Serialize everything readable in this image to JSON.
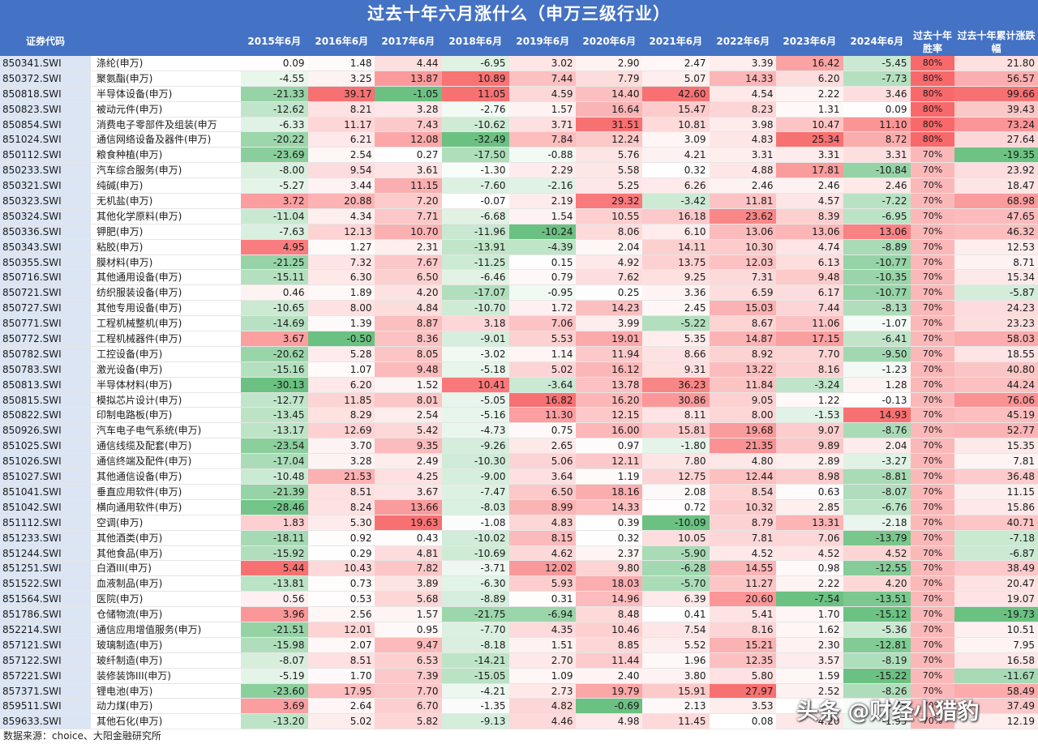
{
  "title": "过去十年六月涨什么（申万三级行业）",
  "headers": {
    "code": "证券代码",
    "years": [
      "2015年6月",
      "2016年6月",
      "2017年6月",
      "2018年6月",
      "2019年6月",
      "2020年6月",
      "2021年6月",
      "2022年6月",
      "2023年6月",
      "2024年6月"
    ],
    "winrate": "过去十年胜率",
    "cumulative": "过去十年累计涨跌幅"
  },
  "rows": [
    {
      "code": "850341.SWI",
      "name": "涤纶(申万)",
      "v": [
        "0.09",
        "1.48",
        "4.44",
        "-6.95",
        "3.02",
        "2.90",
        "2.47",
        "3.39",
        "16.42",
        "-5.45"
      ],
      "win": "80%",
      "cum": "21.80"
    },
    {
      "code": "850372.SWI",
      "name": "聚氨酯(申万)",
      "v": [
        "-4.55",
        "3.25",
        "13.87",
        "10.89",
        "7.44",
        "7.79",
        "5.07",
        "14.33",
        "6.20",
        "-7.73"
      ],
      "win": "80%",
      "cum": "56.57"
    },
    {
      "code": "850818.SWI",
      "name": "半导体设备(申万)",
      "v": [
        "-21.33",
        "39.17",
        "-1.05",
        "11.05",
        "4.59",
        "14.40",
        "42.60",
        "4.54",
        "2.22",
        "3.46"
      ],
      "win": "80%",
      "cum": "99.66"
    },
    {
      "code": "850823.SWI",
      "name": "被动元件(申万)",
      "v": [
        "-12.62",
        "8.21",
        "3.28",
        "-2.76",
        "1.57",
        "16.64",
        "15.47",
        "8.23",
        "1.31",
        "0.09"
      ],
      "win": "80%",
      "cum": "39.43"
    },
    {
      "code": "850854.SWI",
      "name": "消费电子零部件及组装(申万",
      "v": [
        "-6.33",
        "11.17",
        "7.43",
        "-10.62",
        "3.71",
        "31.51",
        "10.81",
        "3.98",
        "10.47",
        "11.10"
      ],
      "win": "80%",
      "cum": "73.24"
    },
    {
      "code": "851024.SWI",
      "name": "通信网络设备及器件(申万)",
      "v": [
        "-20.22",
        "6.21",
        "12.08",
        "-32.49",
        "7.84",
        "12.24",
        "3.09",
        "4.83",
        "25.34",
        "8.72"
      ],
      "win": "80%",
      "cum": "27.64"
    },
    {
      "code": "850112.SWI",
      "name": "粮食种植(申万)",
      "v": [
        "-23.69",
        "2.54",
        "0.27",
        "-17.50",
        "-0.88",
        "5.76",
        "4.21",
        "3.31",
        "3.31",
        "3.31"
      ],
      "win": "70%",
      "cum": "-19.35"
    },
    {
      "code": "850233.SWI",
      "name": "汽车综合服务(申万)",
      "v": [
        "-8.00",
        "9.54",
        "3.61",
        "-1.30",
        "2.29",
        "5.58",
        "0.32",
        "4.88",
        "17.81",
        "-10.84"
      ],
      "win": "70%",
      "cum": "23.92"
    },
    {
      "code": "850321.SWI",
      "name": "纯碱(申万)",
      "v": [
        "-5.27",
        "3.44",
        "11.15",
        "-7.60",
        "-2.16",
        "5.25",
        "6.26",
        "2.46",
        "2.46",
        "2.46"
      ],
      "win": "70%",
      "cum": "18.47"
    },
    {
      "code": "850323.SWI",
      "name": "无机盐(申万)",
      "v": [
        "3.72",
        "20.88",
        "7.20",
        "-0.07",
        "2.19",
        "29.32",
        "-3.42",
        "11.81",
        "4.57",
        "-7.22"
      ],
      "win": "70%",
      "cum": "68.98"
    },
    {
      "code": "850324.SWI",
      "name": "其他化学原料(申万)",
      "v": [
        "-11.04",
        "4.34",
        "7.71",
        "-6.68",
        "1.54",
        "10.55",
        "16.18",
        "23.62",
        "8.39",
        "-6.95"
      ],
      "win": "70%",
      "cum": "47.65"
    },
    {
      "code": "850336.SWI",
      "name": "钾肥(申万)",
      "v": [
        "-7.63",
        "12.13",
        "10.70",
        "-11.96",
        "-10.24",
        "8.06",
        "6.10",
        "13.06",
        "13.06",
        "13.06"
      ],
      "win": "70%",
      "cum": "46.32"
    },
    {
      "code": "850343.SWI",
      "name": "粘胶(申万)",
      "v": [
        "4.95",
        "1.27",
        "2.31",
        "-13.91",
        "-4.39",
        "2.04",
        "14.11",
        "10.30",
        "4.74",
        "-8.89"
      ],
      "win": "70%",
      "cum": "12.53"
    },
    {
      "code": "850355.SWI",
      "name": "膜材料(申万)",
      "v": [
        "-21.25",
        "7.32",
        "7.67",
        "-11.25",
        "0.15",
        "4.92",
        "13.75",
        "12.03",
        "6.13",
        "-10.77"
      ],
      "win": "70%",
      "cum": "8.71"
    },
    {
      "code": "850716.SWI",
      "name": "其他通用设备(申万)",
      "v": [
        "-15.11",
        "6.30",
        "6.50",
        "-6.46",
        "0.79",
        "7.62",
        "9.25",
        "7.31",
        "9.48",
        "-10.35"
      ],
      "win": "70%",
      "cum": "15.34"
    },
    {
      "code": "850721.SWI",
      "name": "纺织服装设备(申万)",
      "v": [
        "0.46",
        "1.89",
        "4.20",
        "-17.07",
        "-0.95",
        "0.25",
        "3.36",
        "6.59",
        "6.17",
        "-10.77"
      ],
      "win": "70%",
      "cum": "-5.87"
    },
    {
      "code": "850727.SWI",
      "name": "其他专用设备(申万)",
      "v": [
        "-10.65",
        "8.00",
        "4.84",
        "-10.70",
        "1.72",
        "14.23",
        "2.45",
        "15.03",
        "7.44",
        "-8.13"
      ],
      "win": "70%",
      "cum": "24.23"
    },
    {
      "code": "850771.SWI",
      "name": "工程机械整机(申万)",
      "v": [
        "-14.69",
        "1.39",
        "8.87",
        "3.18",
        "7.06",
        "3.99",
        "-5.22",
        "8.67",
        "11.06",
        "-1.07"
      ],
      "win": "70%",
      "cum": "23.23"
    },
    {
      "code": "850772.SWI",
      "name": "工程机械器件(申万)",
      "v": [
        "3.67",
        "-0.50",
        "8.36",
        "-9.01",
        "5.53",
        "19.01",
        "5.35",
        "14.87",
        "17.15",
        "-6.41"
      ],
      "win": "70%",
      "cum": "58.03"
    },
    {
      "code": "850782.SWI",
      "name": "工控设备(申万)",
      "v": [
        "-20.62",
        "5.28",
        "8.05",
        "-3.02",
        "1.14",
        "11.94",
        "8.66",
        "8.92",
        "7.70",
        "-9.50"
      ],
      "win": "70%",
      "cum": "18.55"
    },
    {
      "code": "850783.SWI",
      "name": "激光设备(申万)",
      "v": [
        "-15.16",
        "1.07",
        "9.48",
        "-5.18",
        "5.02",
        "16.12",
        "9.31",
        "13.22",
        "8.16",
        "-1.23"
      ],
      "win": "70%",
      "cum": "40.80"
    },
    {
      "code": "850813.SWI",
      "name": "半导体材料(申万)",
      "v": [
        "-30.13",
        "6.20",
        "1.52",
        "10.41",
        "-3.64",
        "13.78",
        "36.23",
        "11.84",
        "-3.24",
        "1.28"
      ],
      "win": "70%",
      "cum": "44.24"
    },
    {
      "code": "850815.SWI",
      "name": "模拟芯片设计(申万)",
      "v": [
        "-12.77",
        "11.85",
        "8.01",
        "-5.05",
        "16.82",
        "16.20",
        "30.86",
        "9.05",
        "1.22",
        "-0.13"
      ],
      "win": "70%",
      "cum": "76.06"
    },
    {
      "code": "850822.SWI",
      "name": "印制电路板(申万)",
      "v": [
        "-13.45",
        "8.29",
        "2.54",
        "-5.16",
        "11.30",
        "12.15",
        "8.11",
        "8.00",
        "-1.53",
        "14.93"
      ],
      "win": "70%",
      "cum": "45.19"
    },
    {
      "code": "850926.SWI",
      "name": "汽车电子电气系统(申万)",
      "v": [
        "-13.17",
        "12.69",
        "5.42",
        "-4.73",
        "0.75",
        "16.00",
        "15.81",
        "19.68",
        "9.07",
        "-8.76"
      ],
      "win": "70%",
      "cum": "52.77"
    },
    {
      "code": "851025.SWI",
      "name": "通信线缆及配套(申万)",
      "v": [
        "-23.54",
        "3.70",
        "9.35",
        "-9.26",
        "2.65",
        "0.97",
        "-1.80",
        "21.35",
        "9.89",
        "2.04"
      ],
      "win": "70%",
      "cum": "15.35"
    },
    {
      "code": "851026.SWI",
      "name": "通信终端及配件(申万)",
      "v": [
        "-17.04",
        "3.28",
        "2.49",
        "-10.30",
        "5.06",
        "12.11",
        "7.80",
        "4.80",
        "2.89",
        "-3.27"
      ],
      "win": "70%",
      "cum": "7.81"
    },
    {
      "code": "851027.SWI",
      "name": "其他通信设备(申万)",
      "v": [
        "-10.48",
        "21.53",
        "4.25",
        "-9.00",
        "3.64",
        "1.19",
        "12.75",
        "12.44",
        "8.98",
        "-8.81"
      ],
      "win": "70%",
      "cum": "36.48"
    },
    {
      "code": "851041.SWI",
      "name": "垂直应用软件(申万)",
      "v": [
        "-21.39",
        "8.51",
        "3.67",
        "-7.47",
        "6.50",
        "18.16",
        "2.08",
        "8.54",
        "0.63",
        "-8.07"
      ],
      "win": "70%",
      "cum": "11.15"
    },
    {
      "code": "851042.SWI",
      "name": "横向通用软件(申万)",
      "v": [
        "-28.46",
        "8.24",
        "13.66",
        "-8.03",
        "8.99",
        "14.33",
        "0.72",
        "10.32",
        "2.85",
        "-6.76"
      ],
      "win": "70%",
      "cum": "15.86"
    },
    {
      "code": "851112.SWI",
      "name": "空调(申万)",
      "v": [
        "1.83",
        "5.30",
        "19.63",
        "-1.08",
        "4.83",
        "0.39",
        "-10.09",
        "8.79",
        "13.31",
        "-2.18"
      ],
      "win": "70%",
      "cum": "40.71"
    },
    {
      "code": "851233.SWI",
      "name": "其他酒类(申万)",
      "v": [
        "-18.11",
        "0.92",
        "0.43",
        "-10.02",
        "8.15",
        "0.32",
        "10.05",
        "7.81",
        "7.06",
        "-13.79"
      ],
      "win": "70%",
      "cum": "-7.18"
    },
    {
      "code": "851244.SWI",
      "name": "其他食品(申万)",
      "v": [
        "-15.92",
        "0.29",
        "4.81",
        "-10.69",
        "4.62",
        "2.37",
        "-5.90",
        "4.52",
        "4.52",
        "4.52"
      ],
      "win": "70%",
      "cum": "-6.87"
    },
    {
      "code": "851251.SWI",
      "name": "白酒III(申万)",
      "v": [
        "5.44",
        "10.43",
        "7.82",
        "-3.71",
        "12.02",
        "9.80",
        "-6.28",
        "14.55",
        "0.98",
        "-12.55"
      ],
      "win": "70%",
      "cum": "38.49"
    },
    {
      "code": "851522.SWI",
      "name": "血液制品(申万)",
      "v": [
        "-13.81",
        "0.73",
        "3.89",
        "-6.30",
        "5.93",
        "18.03",
        "-5.70",
        "11.27",
        "2.22",
        "4.20"
      ],
      "win": "70%",
      "cum": "20.47"
    },
    {
      "code": "851564.SWI",
      "name": "医院(申万)",
      "v": [
        "0.56",
        "0.53",
        "5.68",
        "-8.89",
        "0.31",
        "14.96",
        "6.39",
        "20.60",
        "-7.54",
        "-13.51"
      ],
      "win": "70%",
      "cum": "19.07"
    },
    {
      "code": "851786.SWI",
      "name": "仓储物流(申万)",
      "v": [
        "3.96",
        "2.56",
        "1.57",
        "-21.75",
        "-6.94",
        "8.48",
        "0.41",
        "5.41",
        "1.70",
        "-15.12"
      ],
      "win": "70%",
      "cum": "-19.73"
    },
    {
      "code": "852214.SWI",
      "name": "通信应用增值服务(申万)",
      "v": [
        "-21.51",
        "12.01",
        "0.95",
        "-7.70",
        "4.35",
        "10.46",
        "7.54",
        "8.16",
        "1.62",
        "-5.36"
      ],
      "win": "70%",
      "cum": "10.51"
    },
    {
      "code": "857121.SWI",
      "name": "玻璃制造(申万)",
      "v": [
        "-15.98",
        "2.07",
        "9.47",
        "-8.18",
        "1.51",
        "8.85",
        "5.52",
        "15.21",
        "2.30",
        "-12.81"
      ],
      "win": "70%",
      "cum": "7.95"
    },
    {
      "code": "857122.SWI",
      "name": "玻纤制造(申万)",
      "v": [
        "-8.07",
        "8.51",
        "6.53",
        "-14.21",
        "2.70",
        "11.44",
        "1.96",
        "12.35",
        "3.57",
        "-8.19"
      ],
      "win": "70%",
      "cum": "16.58"
    },
    {
      "code": "857221.SWI",
      "name": "装修装饰III(申万)",
      "v": [
        "-5.19",
        "1.70",
        "7.39",
        "-15.05",
        "1.09",
        "2.40",
        "3.80",
        "5.80",
        "1.59",
        "-15.22"
      ],
      "win": "70%",
      "cum": "-11.67"
    },
    {
      "code": "857371.SWI",
      "name": "锂电池(申万)",
      "v": [
        "-23.60",
        "17.95",
        "7.70",
        "-4.21",
        "2.73",
        "19.79",
        "15.91",
        "27.97",
        "2.52",
        "-8.26"
      ],
      "win": "70%",
      "cum": "58.49"
    },
    {
      "code": "859511.SWI",
      "name": "动力煤(申万)",
      "v": [
        "3.69",
        "2.64",
        "6.70",
        "-1.35",
        "4.82",
        "-0.69",
        "2.13",
        "3.53",
        "",
        "-0.75"
      ],
      "win": "70%",
      "cum": "37.49"
    },
    {
      "code": "859633.SWI",
      "name": "其他石化(申万)",
      "v": [
        "-13.20",
        "5.02",
        "5.82",
        "-9.13",
        "4.46",
        "4.98",
        "11.45",
        "0.08",
        "4.20",
        "-1.95"
      ],
      "win": "70%",
      "cum": "12.19"
    }
  ],
  "footer": "数据来源：choice、大阳金融研究所",
  "watermark": "头条 @财经小猎豹",
  "colors": {
    "header_bg": "#4472c4",
    "positive_max": "#f8696b",
    "negative_max": "#63be7b",
    "winrate_80": "#f8696b",
    "winrate_70": "#fbb8b9",
    "code_bg": "#dbe5f3"
  }
}
